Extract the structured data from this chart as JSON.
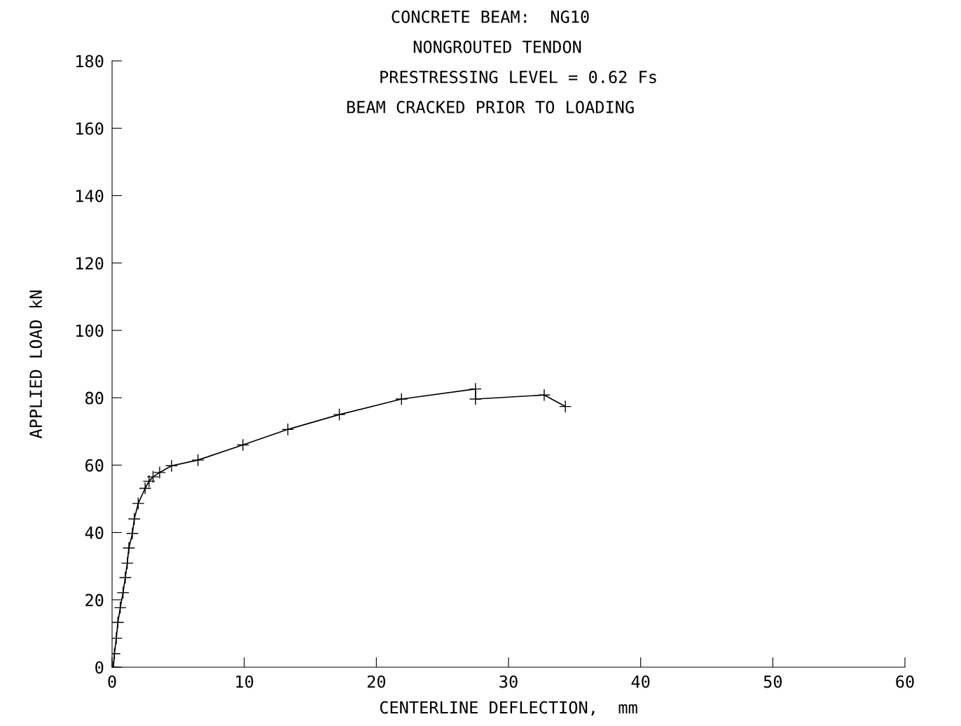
{
  "chart_data": {
    "type": "line",
    "title": "CONCRETE BEAM:  NG10",
    "annotations": [
      "NONGROUTED TENDON",
      "PRESTRESSING LEVEL = 0.62 Fs",
      "BEAM CRACKED PRIOR TO LOADING"
    ],
    "xlabel": "CENTERLINE DEFLECTION,  mm",
    "ylabel": "APPLIED LOAD kN",
    "series": [
      {
        "color": "#000000",
        "x": [
          0.1,
          0.18,
          0.32,
          0.44,
          0.62,
          0.83,
          1.0,
          1.15,
          1.27,
          1.54,
          1.68,
          1.98,
          2.5,
          2.8,
          3.1,
          3.6,
          4.5,
          6.5,
          9.9,
          13.3,
          17.2,
          21.9,
          27.5,
          27.5,
          32.7,
          34.3
        ],
        "values": [
          0,
          4,
          8.6,
          13.3,
          17.7,
          22.1,
          26.6,
          30.9,
          35.4,
          39.7,
          44,
          48.6,
          53.1,
          55.2,
          56.5,
          57.8,
          59.8,
          61.5,
          66,
          70.6,
          75,
          79.6,
          82.6,
          79.6,
          80.8,
          77.4
        ]
      }
    ],
    "marker": "cross",
    "line_style": "solid",
    "grid": false,
    "legend": false,
    "xlim": [
      0,
      60
    ],
    "xticks": [
      0,
      10,
      20,
      30,
      40,
      50,
      60
    ],
    "ylim": [
      0,
      180
    ],
    "yticks": [
      0,
      20,
      40,
      60,
      80,
      100,
      120,
      140,
      160,
      180
    ]
  }
}
